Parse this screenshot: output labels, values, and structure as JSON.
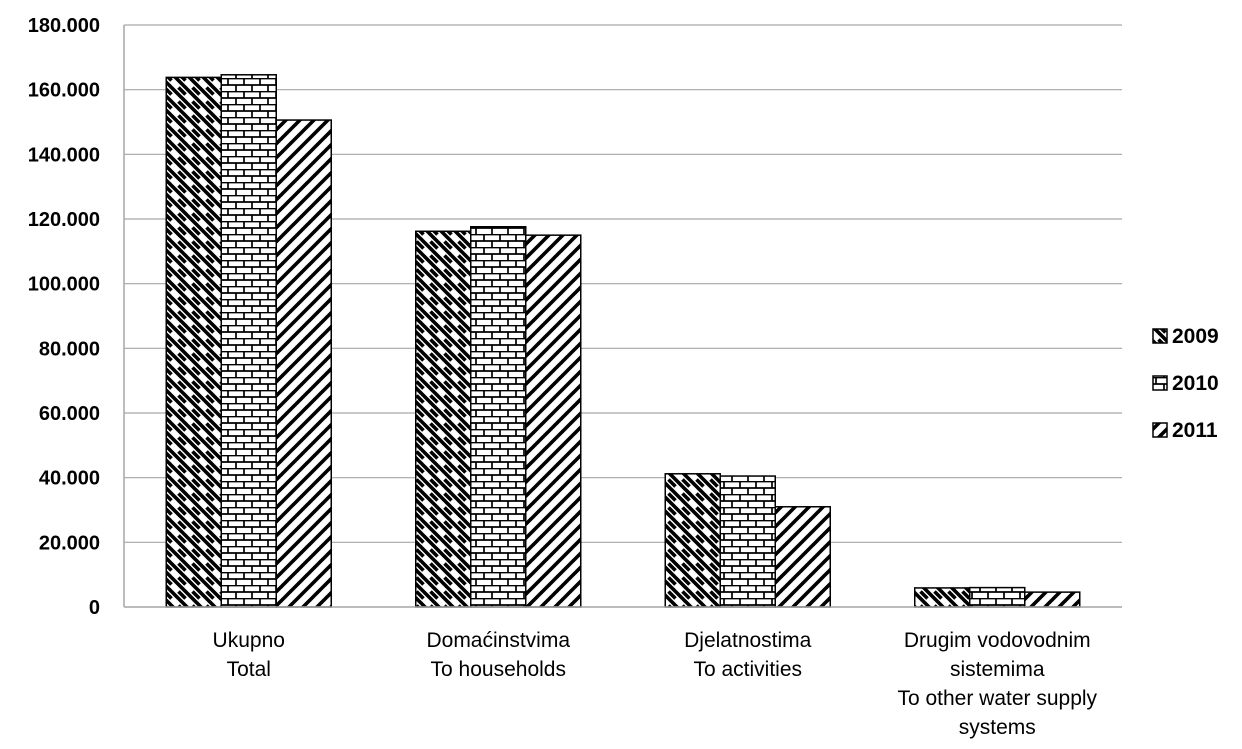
{
  "chart_data": {
    "type": "bar",
    "categories": [
      [
        "Ukupno",
        "Total"
      ],
      [
        "Domaćinstvima",
        "To households"
      ],
      [
        "Djelatnostima",
        "To activities"
      ],
      [
        "Drugim vodovodnim",
        "sistemima",
        "To other water supply",
        "systems"
      ]
    ],
    "series": [
      {
        "name": "2009",
        "pattern": "diag-down",
        "values": [
          163800,
          116200,
          41200,
          5900
        ]
      },
      {
        "name": "2010",
        "pattern": "brick",
        "values": [
          164600,
          117600,
          40500,
          6000
        ]
      },
      {
        "name": "2011",
        "pattern": "diag-up",
        "values": [
          150600,
          115000,
          31000,
          4600
        ]
      }
    ],
    "ylim": [
      0,
      180000
    ],
    "yticks": [
      0,
      20000,
      40000,
      60000,
      80000,
      100000,
      120000,
      140000,
      160000,
      180000
    ],
    "ytick_labels": [
      "0",
      "20.000",
      "40.000",
      "60.000",
      "80.000",
      "100.000",
      "120.000",
      "140.000",
      "160.000",
      "180.000"
    ],
    "grid": true,
    "legend_position": "right",
    "colors": {
      "bar_fill": "#ffffff",
      "hatch": "#000000",
      "gridline": "#a6a6a6"
    }
  }
}
